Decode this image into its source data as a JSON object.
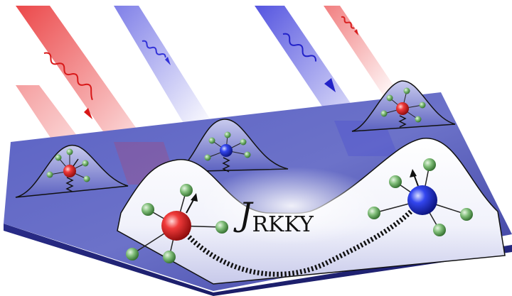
{
  "label": {
    "main": "J",
    "subscript": "RKKY"
  },
  "colors": {
    "slab_top": "#5a5fbf",
    "slab_dark": "#23267a",
    "beam_red": "#e02020",
    "beam_blue": "#2a2ad8",
    "atom_red": "#e8222a",
    "atom_blue": "#2230e0",
    "ligand_green": "#6fae6a",
    "spring": "#111111"
  },
  "icons": [
    "red-photon-beam",
    "blue-photon-beam",
    "magnetic-atom",
    "ligand",
    "spring",
    "wavefunction-bump"
  ]
}
